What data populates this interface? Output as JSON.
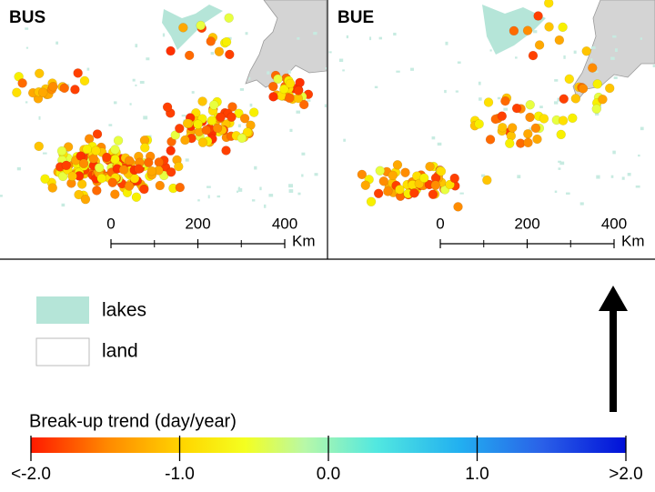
{
  "panels": [
    {
      "label": "BUS",
      "scale_bar": {
        "ticks": [
          0,
          200,
          400
        ],
        "unit": "Km"
      }
    },
    {
      "label": "BUE",
      "scale_bar": {
        "ticks": [
          0,
          200,
          400
        ],
        "unit": "Km"
      }
    }
  ],
  "legend": {
    "items": [
      "lakes",
      "land"
    ]
  },
  "colorbar": {
    "title": "Break-up trend (day/year)",
    "range": [
      -2,
      2
    ],
    "ticks": [
      {
        "value": -2,
        "label": "<-2.0"
      },
      {
        "value": -1,
        "label": "-1.0"
      },
      {
        "value": 0,
        "label": "0.0"
      },
      {
        "value": 1,
        "label": "1.0"
      },
      {
        "value": 2,
        "label": ">2.0"
      }
    ]
  }
}
